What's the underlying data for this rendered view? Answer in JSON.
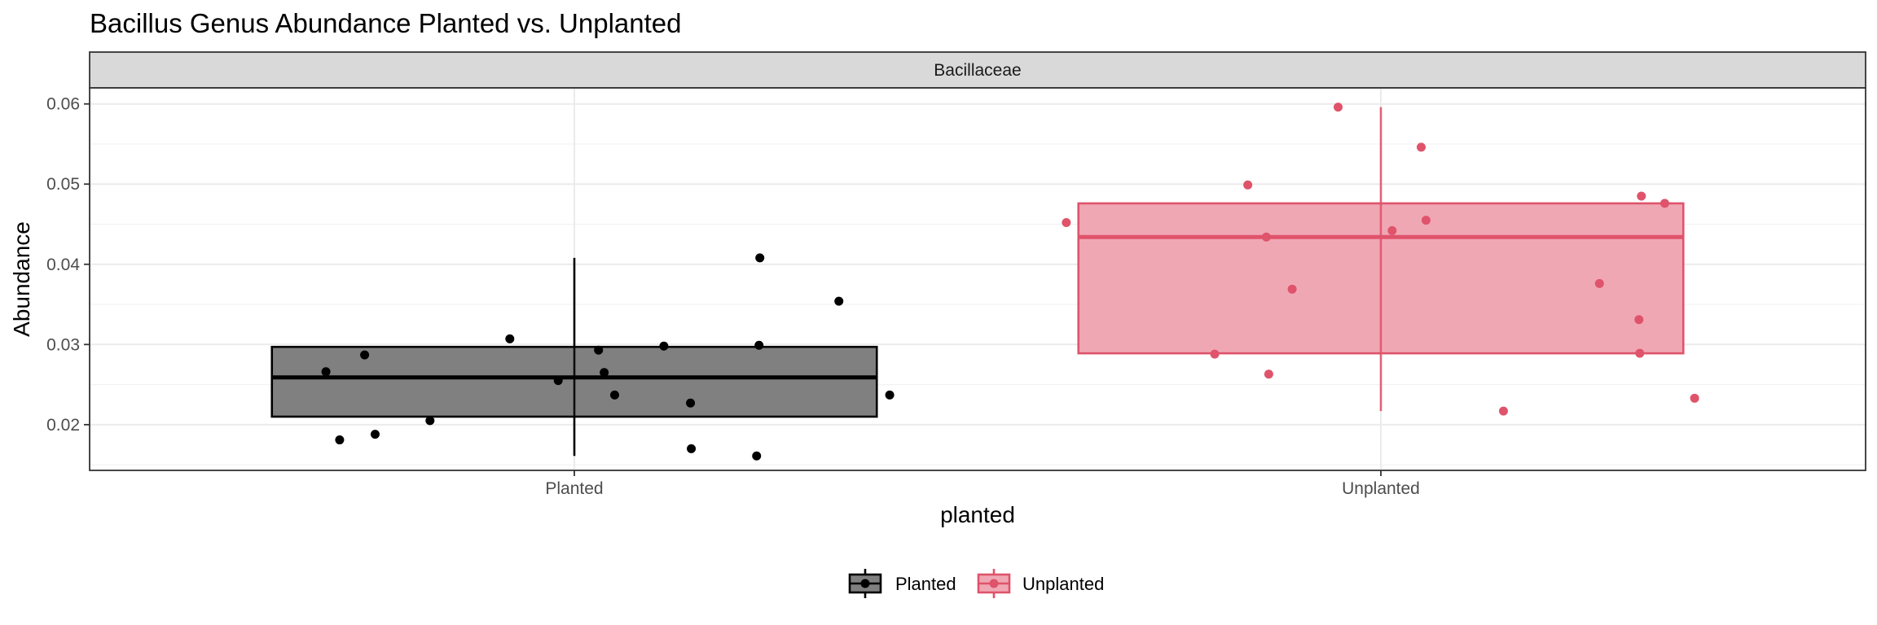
{
  "chart_data": {
    "type": "boxplot",
    "title": "Bacillus Genus Abundance Planted vs. Unplanted",
    "facet_label": "Bacillaceae",
    "xlabel": "planted",
    "ylabel": "Abundance",
    "categories": [
      "Planted",
      "Unplanted"
    ],
    "ylim": [
      0.0143,
      0.062
    ],
    "y_ticks": [
      0.02,
      0.03,
      0.04,
      0.05,
      0.06
    ],
    "y_tick_labels": [
      "0.02",
      "0.03",
      "0.04",
      "0.05",
      "0.06"
    ],
    "grid": true,
    "legend_position": "bottom",
    "series": [
      {
        "name": "Planted",
        "color": "#000000",
        "fill": "#808080",
        "box": {
          "whisker_low": 0.0161,
          "q1": 0.021,
          "median": 0.0259,
          "q3": 0.0297,
          "whisker_high": 0.0408
        },
        "points": [
          {
            "jitter": -0.308,
            "y": 0.0266
          },
          {
            "jitter": -0.291,
            "y": 0.0181
          },
          {
            "jitter": -0.26,
            "y": 0.0287
          },
          {
            "jitter": -0.247,
            "y": 0.0188
          },
          {
            "jitter": -0.179,
            "y": 0.0205
          },
          {
            "jitter": -0.08,
            "y": 0.0307
          },
          {
            "jitter": -0.02,
            "y": 0.0255
          },
          {
            "jitter": 0.03,
            "y": 0.0293
          },
          {
            "jitter": 0.037,
            "y": 0.0265
          },
          {
            "jitter": 0.05,
            "y": 0.0237
          },
          {
            "jitter": 0.111,
            "y": 0.0298
          },
          {
            "jitter": 0.144,
            "y": 0.0227
          },
          {
            "jitter": 0.145,
            "y": 0.017
          },
          {
            "jitter": 0.226,
            "y": 0.0161
          },
          {
            "jitter": 0.23,
            "y": 0.0408
          },
          {
            "jitter": 0.229,
            "y": 0.0299
          },
          {
            "jitter": 0.328,
            "y": 0.0354
          },
          {
            "jitter": 0.391,
            "y": 0.0237
          }
        ]
      },
      {
        "name": "Unplanted",
        "color": "#DF536B",
        "fill": "#F0A7B4",
        "box": {
          "whisker_low": 0.0217,
          "q1": 0.0289,
          "median": 0.0434,
          "q3": 0.0476,
          "whisker_high": 0.0596
        },
        "points": [
          {
            "jitter": -0.39,
            "y": 0.0452
          },
          {
            "jitter": -0.206,
            "y": 0.0288
          },
          {
            "jitter": -0.165,
            "y": 0.0499
          },
          {
            "jitter": -0.142,
            "y": 0.0434
          },
          {
            "jitter": -0.139,
            "y": 0.0263
          },
          {
            "jitter": -0.11,
            "y": 0.0369
          },
          {
            "jitter": -0.053,
            "y": 0.0596
          },
          {
            "jitter": 0.014,
            "y": 0.0442
          },
          {
            "jitter": 0.05,
            "y": 0.0546
          },
          {
            "jitter": 0.056,
            "y": 0.0455
          },
          {
            "jitter": 0.152,
            "y": 0.0217
          },
          {
            "jitter": 0.271,
            "y": 0.0376
          },
          {
            "jitter": 0.32,
            "y": 0.0331
          },
          {
            "jitter": 0.321,
            "y": 0.0289
          },
          {
            "jitter": 0.323,
            "y": 0.0485
          },
          {
            "jitter": 0.352,
            "y": 0.0476
          },
          {
            "jitter": 0.389,
            "y": 0.0233
          }
        ]
      }
    ]
  }
}
